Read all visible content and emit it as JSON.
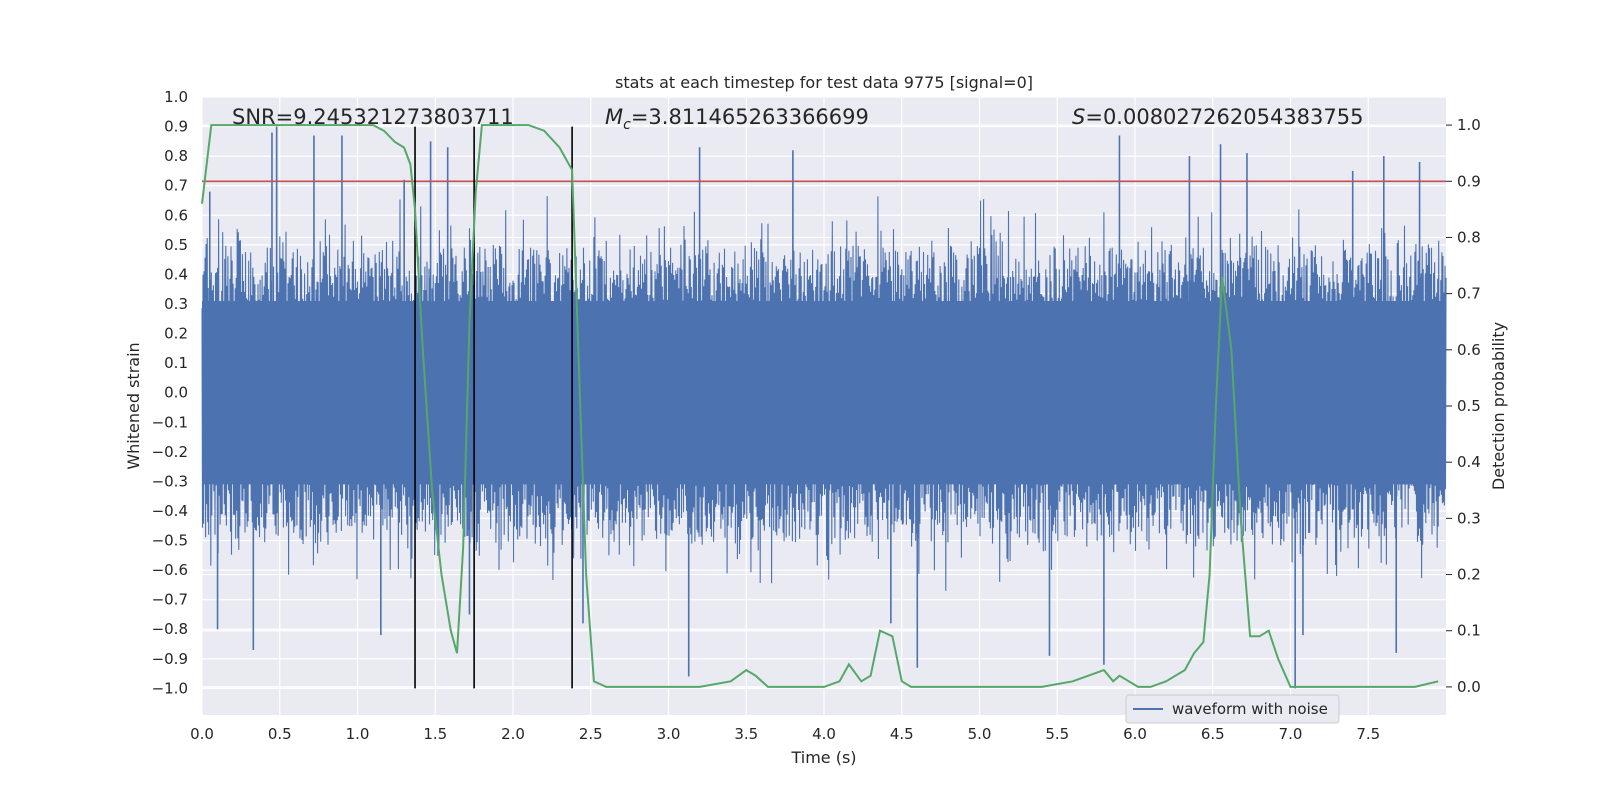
{
  "chart_data": {
    "type": "line",
    "title": "stats at each timestep for test data 9775 [signal=0]",
    "xlabel": "Time (s)",
    "ylabel": "Whitened strain",
    "y2label": "Detection probability",
    "xlim": [
      0.0,
      8.0
    ],
    "ylim": [
      -1.09,
      1.0
    ],
    "y2lim": [
      -0.05,
      1.05
    ],
    "x_ticks": [
      0.0,
      0.5,
      1.0,
      1.5,
      2.0,
      2.5,
      3.0,
      3.5,
      4.0,
      4.5,
      5.0,
      5.5,
      6.0,
      6.5,
      7.0,
      7.5
    ],
    "x_tick_labels": [
      "0.0",
      "0.5",
      "1.0",
      "1.5",
      "2.0",
      "2.5",
      "3.0",
      "3.5",
      "4.0",
      "4.5",
      "5.0",
      "5.5",
      "6.0",
      "6.5",
      "7.0",
      "7.5"
    ],
    "y_ticks": [
      1.0,
      0.9,
      0.8,
      0.7,
      0.6,
      0.5,
      0.4,
      0.3,
      0.2,
      0.1,
      0.0,
      -0.1,
      -0.2,
      -0.3,
      -0.4,
      -0.5,
      -0.6,
      -0.7,
      -0.8,
      -0.9,
      -1.0
    ],
    "y_tick_labels": [
      "1.0",
      "0.9",
      "0.8",
      "0.7",
      "0.6",
      "0.5",
      "0.4",
      "0.3",
      "0.2",
      "0.1",
      "0.0",
      "−0.1",
      "−0.2",
      "−0.3",
      "−0.4",
      "−0.5",
      "−0.6",
      "−0.7",
      "−0.8",
      "−0.9",
      "−1.0"
    ],
    "y2_ticks": [
      1.0,
      0.9,
      0.8,
      0.7,
      0.6,
      0.5,
      0.4,
      0.3,
      0.2,
      0.1,
      0.0
    ],
    "y2_tick_labels": [
      "1.0",
      "0.9",
      "0.8",
      "0.7",
      "0.6",
      "0.5",
      "0.4",
      "0.3",
      "0.2",
      "0.1",
      "0.0"
    ],
    "grid": true,
    "legend": {
      "placement": "lower-right",
      "entries": [
        "waveform with noise"
      ]
    },
    "stats": {
      "snr_text": "SNR=9.245321273803711",
      "mc_symbol": "M",
      "mc_subscript": "c",
      "mc_value": "=3.811465263366699",
      "s_symbol": "S",
      "s_value": "=0.008027262054383755"
    },
    "threshold_y2": 0.9,
    "vertical_markers_x": [
      1.37,
      1.75,
      2.38
    ],
    "vertical_markers_range": [
      -1.0,
      0.9
    ],
    "waveform": {
      "name": "waveform with noise",
      "envelope": 0.5,
      "spikes": [
        {
          "x": 0.05,
          "y": 0.68
        },
        {
          "x": 0.1,
          "y": -0.8
        },
        {
          "x": 0.33,
          "y": -0.87
        },
        {
          "x": 0.45,
          "y": 0.88
        },
        {
          "x": 0.48,
          "y": 0.9
        },
        {
          "x": 0.72,
          "y": 0.87
        },
        {
          "x": 0.9,
          "y": 0.87
        },
        {
          "x": 1.15,
          "y": -0.82
        },
        {
          "x": 1.3,
          "y": 0.72
        },
        {
          "x": 1.47,
          "y": 0.85
        },
        {
          "x": 1.58,
          "y": 0.83
        },
        {
          "x": 1.72,
          "y": -0.75
        },
        {
          "x": 2.45,
          "y": -0.78
        },
        {
          "x": 3.13,
          "y": -0.96
        },
        {
          "x": 3.2,
          "y": 0.83
        },
        {
          "x": 3.8,
          "y": 0.82
        },
        {
          "x": 4.43,
          "y": -0.78
        },
        {
          "x": 4.6,
          "y": -0.93
        },
        {
          "x": 5.45,
          "y": -0.89
        },
        {
          "x": 5.8,
          "y": -0.92
        },
        {
          "x": 5.9,
          "y": 0.87
        },
        {
          "x": 6.35,
          "y": 0.8
        },
        {
          "x": 6.55,
          "y": 0.84
        },
        {
          "x": 6.72,
          "y": 0.81
        },
        {
          "x": 7.03,
          "y": -1.0
        },
        {
          "x": 7.08,
          "y": -0.82
        },
        {
          "x": 7.4,
          "y": 0.75
        },
        {
          "x": 7.6,
          "y": 0.8
        },
        {
          "x": 7.68,
          "y": -0.88
        },
        {
          "x": 7.83,
          "y": 0.78
        }
      ]
    },
    "detection_probability": {
      "x": [
        0.0,
        0.06,
        0.12,
        0.3,
        0.5,
        0.7,
        0.9,
        1.1,
        1.17,
        1.24,
        1.3,
        1.34,
        1.37,
        1.42,
        1.48,
        1.54,
        1.6,
        1.64,
        1.68,
        1.72,
        1.76,
        1.8,
        1.9,
        2.0,
        2.1,
        2.2,
        2.3,
        2.38,
        2.42,
        2.47,
        2.52,
        2.6,
        2.8,
        3.0,
        3.2,
        3.4,
        3.5,
        3.56,
        3.64,
        3.8,
        4.0,
        4.1,
        4.16,
        4.24,
        4.3,
        4.36,
        4.44,
        4.5,
        4.56,
        4.64,
        4.8,
        5.0,
        5.4,
        5.6,
        5.7,
        5.8,
        5.86,
        5.9,
        5.96,
        6.02,
        6.1,
        6.2,
        6.26,
        6.32,
        6.38,
        6.44,
        6.48,
        6.52,
        6.56,
        6.62,
        6.68,
        6.74,
        6.8,
        6.86,
        6.92,
        7.0,
        7.2,
        7.5,
        7.8,
        7.95
      ],
      "y": [
        0.86,
        1.0,
        1.0,
        1.0,
        1.0,
        1.0,
        1.0,
        1.0,
        0.99,
        0.97,
        0.96,
        0.93,
        0.85,
        0.6,
        0.35,
        0.2,
        0.1,
        0.06,
        0.25,
        0.65,
        0.88,
        1.0,
        1.0,
        1.0,
        1.0,
        0.99,
        0.96,
        0.92,
        0.6,
        0.2,
        0.01,
        0.0,
        0.0,
        0.0,
        0.0,
        0.01,
        0.03,
        0.02,
        0.0,
        0.0,
        0.0,
        0.01,
        0.04,
        0.01,
        0.02,
        0.1,
        0.09,
        0.01,
        0.0,
        0.0,
        0.0,
        0.0,
        0.0,
        0.01,
        0.02,
        0.03,
        0.01,
        0.02,
        0.01,
        0.0,
        0.0,
        0.01,
        0.02,
        0.03,
        0.06,
        0.08,
        0.2,
        0.5,
        0.73,
        0.6,
        0.3,
        0.09,
        0.09,
        0.1,
        0.05,
        0.0,
        0.0,
        0.0,
        0.0,
        0.01
      ]
    },
    "colors": {
      "background": "#eaeaf2",
      "grid": "#ffffff",
      "waveform": "#4c72b0",
      "probability": "#55a868",
      "threshold": "#c44e52",
      "markers": "#000000"
    }
  }
}
